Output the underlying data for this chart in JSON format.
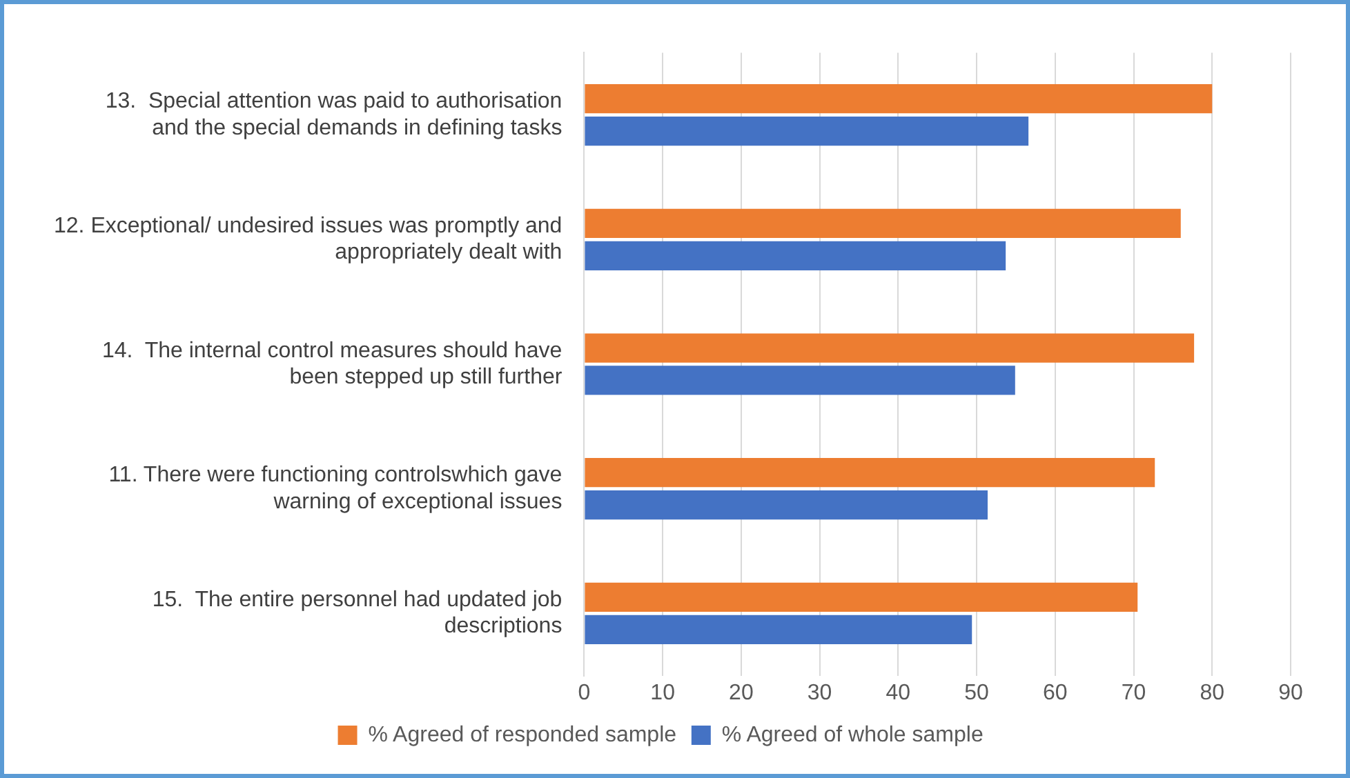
{
  "chart_data": {
    "type": "bar",
    "orientation": "horizontal",
    "categories": [
      "13.  Special attention was paid to authorisation and the special demands in defining tasks",
      "12. Exceptional/ undesired issues was promptly and appropriately dealt with",
      "14.  The internal control measures should have been stepped up still further",
      "11. There were functioning controlswhich gave warning of exceptional issues",
      "15.  The entire personnel had updated job descriptions"
    ],
    "series": [
      {
        "name": "% Agreed of responded sample",
        "color": "#ed7d31",
        "values": [
          80,
          76,
          77.7,
          72.7,
          70.5
        ]
      },
      {
        "name": "% Agreed of whole sample",
        "color": "#4472c4",
        "values": [
          56.6,
          53.7,
          54.9,
          51.4,
          49.4
        ]
      }
    ],
    "xlim": [
      0,
      90
    ],
    "xticks": [
      0,
      10,
      20,
      30,
      40,
      50,
      60,
      70,
      80,
      90
    ],
    "grid": "x",
    "legend": "bottom"
  }
}
